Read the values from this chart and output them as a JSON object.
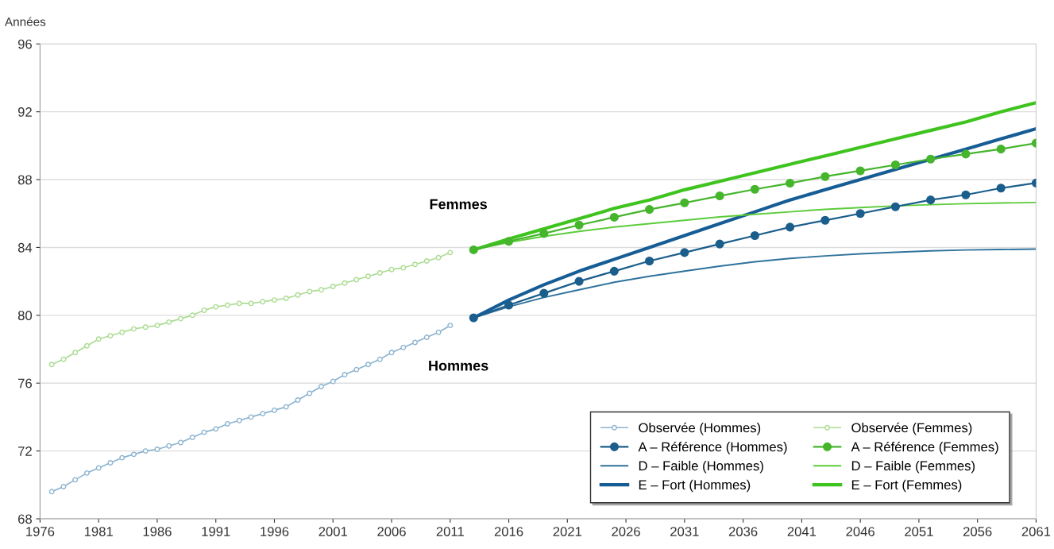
{
  "chart_data": {
    "type": "line",
    "ylabel": "Années",
    "xlim": [
      1976,
      2061
    ],
    "xticks": [
      1976,
      1981,
      1986,
      1991,
      1996,
      2001,
      2006,
      2011,
      2016,
      2021,
      2026,
      2031,
      2036,
      2041,
      2046,
      2051,
      2056,
      2061
    ],
    "ylim": [
      68,
      96
    ],
    "yticks": [
      68,
      72,
      76,
      80,
      84,
      88,
      92,
      96
    ],
    "grid": "y",
    "legend": "bottom right",
    "annotations": [
      "Femmes",
      "Hommes"
    ],
    "series": [
      {
        "name": "Observée (Hommes)",
        "color": "#8db4d0",
        "marker": "circle",
        "x": [
          1977,
          1978,
          1979,
          1980,
          1981,
          1982,
          1983,
          1984,
          1985,
          1986,
          1987,
          1988,
          1989,
          1990,
          1991,
          1992,
          1993,
          1994,
          1995,
          1996,
          1997,
          1998,
          1999,
          2000,
          2001,
          2002,
          2003,
          2004,
          2005,
          2006,
          2007,
          2008,
          2009,
          2010,
          2011
        ],
        "values": [
          69.6,
          69.9,
          70.3,
          70.7,
          71.0,
          71.3,
          71.6,
          71.8,
          72.0,
          72.1,
          72.3,
          72.5,
          72.8,
          73.1,
          73.3,
          73.6,
          73.8,
          74.0,
          74.2,
          74.4,
          74.6,
          75.0,
          75.4,
          75.8,
          76.1,
          76.5,
          76.8,
          77.1,
          77.4,
          77.8,
          78.1,
          78.4,
          78.7,
          79.0,
          79.4
        ]
      },
      {
        "name": "A – Référence (Hommes)",
        "color": "#1b5e8c",
        "marker": "circle",
        "x": [
          2013,
          2016,
          2019,
          2022,
          2025,
          2028,
          2031,
          2034,
          2037,
          2040,
          2043,
          2046,
          2049,
          2052,
          2055,
          2058,
          2061
        ],
        "values": [
          79.85,
          80.6,
          81.3,
          82.0,
          82.6,
          83.2,
          83.7,
          84.2,
          84.7,
          85.2,
          85.6,
          86.0,
          86.4,
          86.8,
          87.1,
          87.5,
          87.8
        ]
      },
      {
        "name": "D – Faible (Hommes)",
        "color": "#2f729c",
        "marker": "none",
        "x": [
          2013,
          2016,
          2019,
          2022,
          2025,
          2028,
          2031,
          2034,
          2037,
          2040,
          2043,
          2046,
          2049,
          2052,
          2055,
          2058,
          2061
        ],
        "values": [
          79.85,
          80.5,
          81.05,
          81.5,
          81.95,
          82.3,
          82.6,
          82.9,
          83.15,
          83.35,
          83.5,
          83.62,
          83.72,
          83.8,
          83.85,
          83.88,
          83.9
        ]
      },
      {
        "name": "E – Fort (Hommes)",
        "color": "#165d96",
        "marker": "none",
        "x": [
          2013,
          2016,
          2019,
          2022,
          2025,
          2028,
          2031,
          2034,
          2037,
          2040,
          2043,
          2046,
          2049,
          2052,
          2055,
          2058,
          2061
        ],
        "values": [
          79.85,
          80.9,
          81.8,
          82.6,
          83.3,
          84.0,
          84.7,
          85.4,
          86.1,
          86.8,
          87.4,
          88.0,
          88.6,
          89.2,
          89.8,
          90.4,
          91.0
        ]
      },
      {
        "name": "Observée (Femmes)",
        "color": "#abdc92",
        "marker": "circle",
        "x": [
          1977,
          1978,
          1979,
          1980,
          1981,
          1982,
          1983,
          1984,
          1985,
          1986,
          1987,
          1988,
          1989,
          1990,
          1991,
          1992,
          1993,
          1994,
          1995,
          1996,
          1997,
          1998,
          1999,
          2000,
          2001,
          2002,
          2003,
          2004,
          2005,
          2006,
          2007,
          2008,
          2009,
          2010,
          2011
        ],
        "values": [
          77.1,
          77.4,
          77.8,
          78.2,
          78.6,
          78.8,
          79.0,
          79.2,
          79.3,
          79.4,
          79.6,
          79.8,
          80.0,
          80.3,
          80.5,
          80.6,
          80.7,
          80.7,
          80.8,
          80.9,
          81.0,
          81.2,
          81.4,
          81.5,
          81.7,
          81.9,
          82.1,
          82.3,
          82.5,
          82.7,
          82.8,
          83.0,
          83.2,
          83.4,
          83.7
        ]
      },
      {
        "name": "A – Référence (Femmes)",
        "color": "#45b52c",
        "marker": "circle",
        "x": [
          2013,
          2016,
          2019,
          2022,
          2025,
          2028,
          2031,
          2034,
          2037,
          2040,
          2043,
          2046,
          2049,
          2052,
          2055,
          2058,
          2061
        ],
        "values": [
          83.86,
          84.36,
          84.82,
          85.32,
          85.78,
          86.24,
          86.63,
          87.04,
          87.43,
          87.79,
          88.18,
          88.52,
          88.87,
          89.21,
          89.51,
          89.8,
          90.15
        ]
      },
      {
        "name": "D – Faible (Femmes)",
        "color": "#5ccc3a",
        "marker": "none",
        "x": [
          2013,
          2016,
          2019,
          2022,
          2025,
          2028,
          2031,
          2034,
          2037,
          2040,
          2043,
          2046,
          2049,
          2052,
          2055,
          2058,
          2061
        ],
        "values": [
          83.86,
          84.3,
          84.65,
          84.95,
          85.2,
          85.4,
          85.6,
          85.8,
          85.95,
          86.1,
          86.25,
          86.35,
          86.45,
          86.52,
          86.58,
          86.62,
          86.65
        ]
      },
      {
        "name": "E – Fort (Femmes)",
        "color": "#3fc41f",
        "marker": "none",
        "x": [
          2013,
          2016,
          2019,
          2022,
          2025,
          2028,
          2031,
          2034,
          2037,
          2040,
          2043,
          2046,
          2049,
          2052,
          2055,
          2058,
          2061
        ],
        "values": [
          83.86,
          84.5,
          85.1,
          85.7,
          86.3,
          86.8,
          87.4,
          87.9,
          88.4,
          88.9,
          89.4,
          89.9,
          90.4,
          90.9,
          91.4,
          92.0,
          92.53
        ]
      }
    ]
  }
}
